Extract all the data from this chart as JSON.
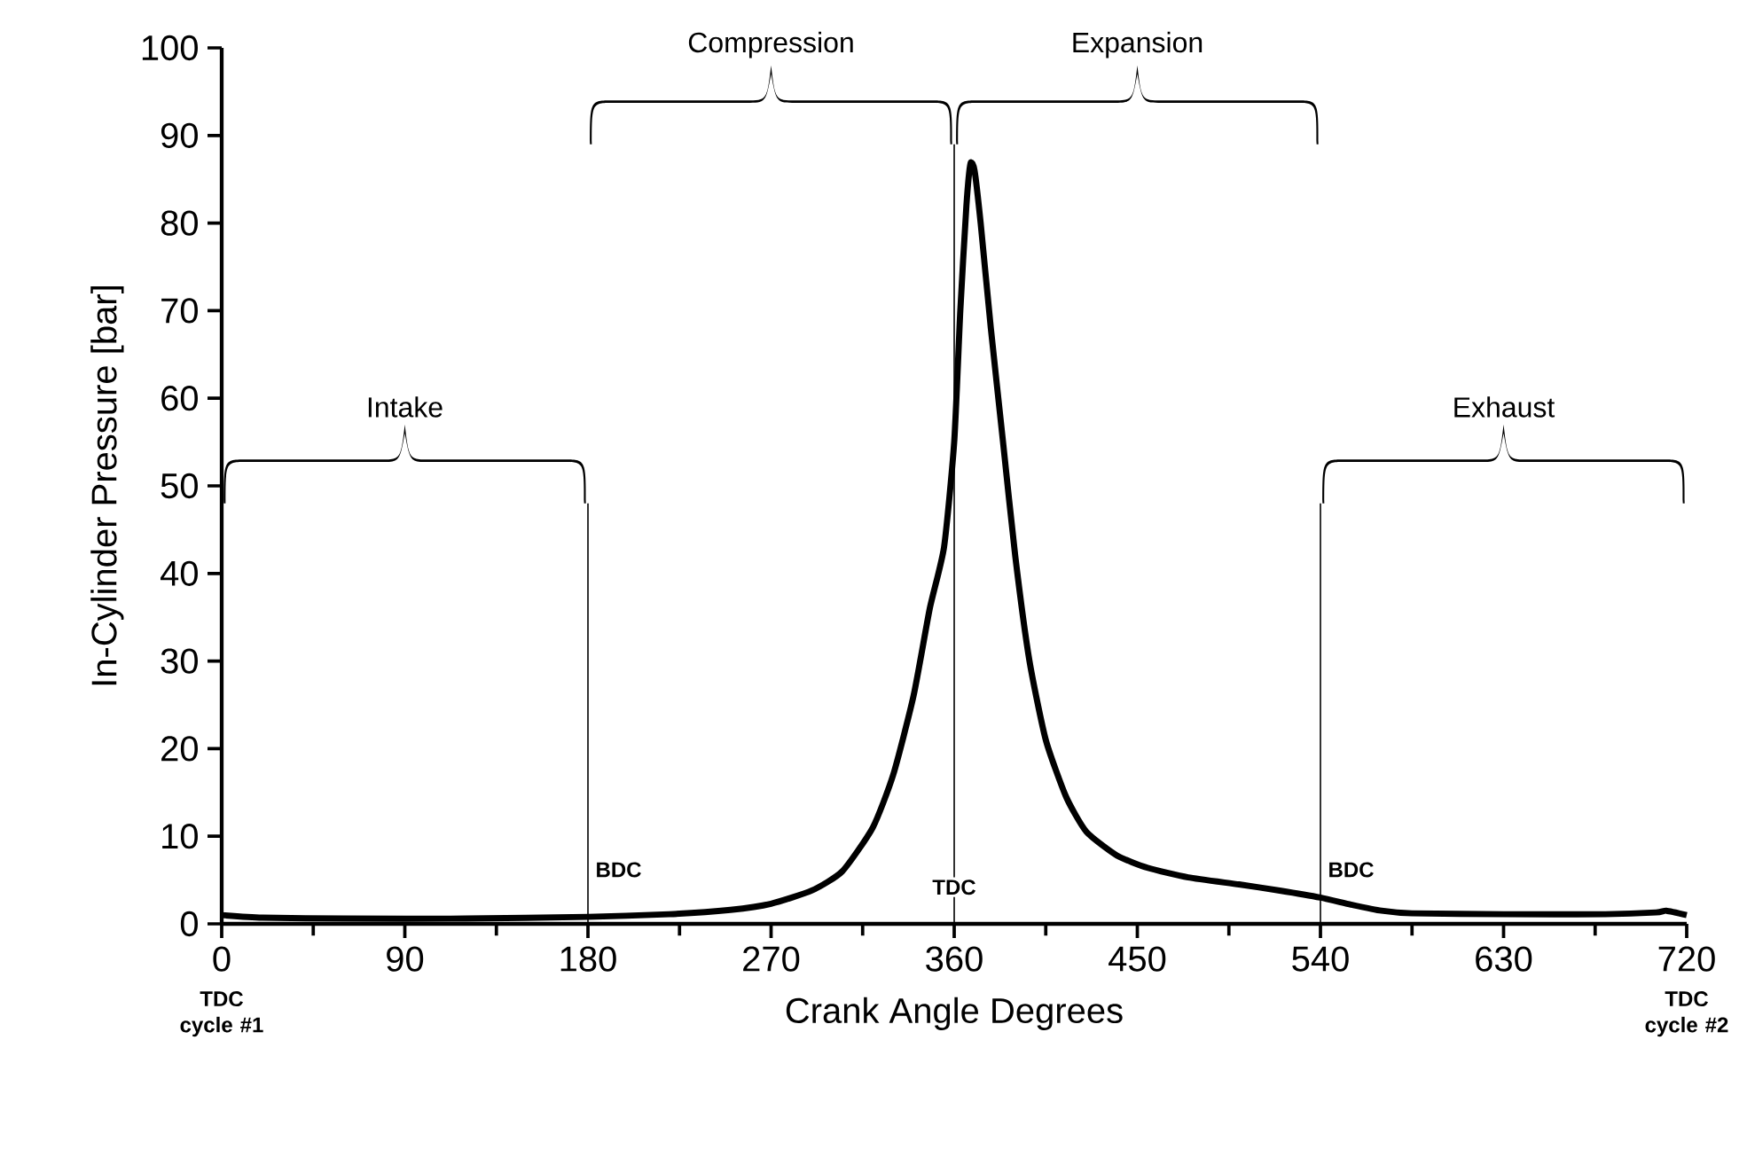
{
  "chart_data": {
    "type": "line",
    "xlabel": "Crank Angle Degrees",
    "ylabel": "In-Cylinder Pressure [bar]",
    "xlim": [
      0,
      720
    ],
    "xticks": [
      0,
      90,
      180,
      270,
      360,
      450,
      540,
      630,
      720
    ],
    "ylim": [
      0,
      100
    ],
    "yticks": [
      0,
      10,
      20,
      30,
      40,
      50,
      60,
      70,
      80,
      90,
      100
    ],
    "grid": false,
    "marker": "none",
    "line_style": "solid",
    "series": [
      {
        "color": "#000000",
        "x": [
          0,
          20,
          60,
          120,
          180,
          220,
          250,
          270,
          290,
          305,
          320,
          330,
          340,
          348,
          355,
          360,
          363,
          366,
          368,
          370,
          373,
          378,
          384,
          390,
          397,
          405,
          415,
          425,
          440,
          455,
          475,
          500,
          520,
          540,
          555,
          570,
          585,
          630,
          680,
          705,
          710,
          720
        ],
        "values": [
          1.0,
          0.7,
          0.6,
          0.6,
          0.8,
          1.1,
          1.6,
          2.3,
          3.8,
          6,
          11,
          17,
          26,
          36,
          43,
          55,
          70,
          82,
          86.8,
          86,
          80,
          68,
          55,
          42,
          30,
          21,
          14.5,
          10.5,
          7.8,
          6.4,
          5.3,
          4.5,
          3.8,
          3.0,
          2.2,
          1.5,
          1.2,
          1.1,
          1.1,
          1.3,
          1.5,
          1.0
        ]
      }
    ],
    "ref_lines": [
      {
        "axis": "x",
        "value": 180,
        "label": "BDC",
        "color": "#000000"
      },
      {
        "axis": "x",
        "value": 360,
        "label": "TDC",
        "color": "#000000"
      },
      {
        "axis": "x",
        "value": 540,
        "label": "BDC",
        "color": "#000000"
      }
    ],
    "annotations": [
      "Intake",
      "Compression",
      "Expansion",
      "Exhaust",
      "TDC cycle #1",
      "TDC cycle #2"
    ]
  }
}
